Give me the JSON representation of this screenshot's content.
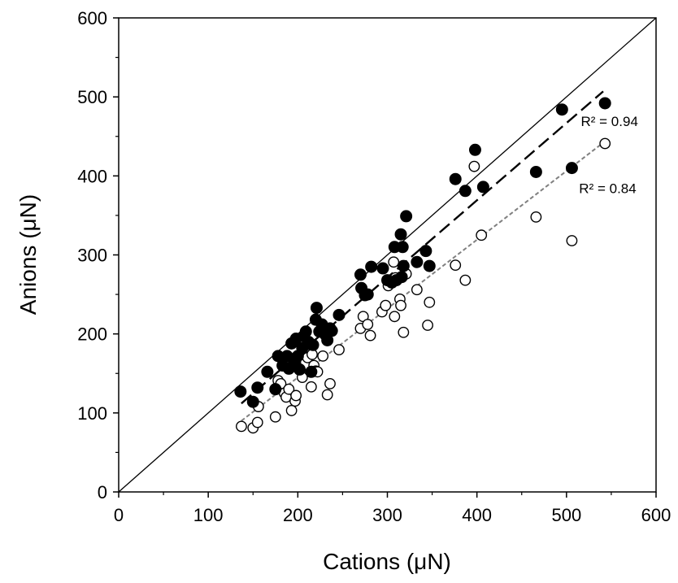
{
  "chart_data": {
    "type": "scatter",
    "title": "",
    "xlabel": "Cations (μN)",
    "ylabel": "Anions (μN)",
    "xlim": [
      0,
      600
    ],
    "ylim": [
      0,
      600
    ],
    "xticks": [
      "0",
      "100",
      "200",
      "300",
      "400",
      "500",
      "600"
    ],
    "yticks": [
      "0",
      "100",
      "200",
      "300",
      "400",
      "500",
      "600"
    ],
    "grid": false,
    "legend": "none",
    "series": [
      {
        "marker": "filled-circle",
        "color": "#000000",
        "points": [
          [
            136,
            127
          ],
          [
            150,
            114
          ],
          [
            155,
            132
          ],
          [
            166,
            152
          ],
          [
            175,
            130
          ],
          [
            178,
            172
          ],
          [
            183,
            160
          ],
          [
            188,
            172
          ],
          [
            190,
            156
          ],
          [
            193,
            188
          ],
          [
            197,
            165
          ],
          [
            198,
            194
          ],
          [
            200,
            172
          ],
          [
            202,
            155
          ],
          [
            205,
            182
          ],
          [
            207,
            197
          ],
          [
            209,
            203
          ],
          [
            212,
            190
          ],
          [
            215,
            152
          ],
          [
            217,
            186
          ],
          [
            220,
            218
          ],
          [
            221,
            233
          ],
          [
            224,
            203
          ],
          [
            227,
            212
          ],
          [
            230,
            200
          ],
          [
            233,
            192
          ],
          [
            236,
            207
          ],
          [
            238,
            204
          ],
          [
            246,
            224
          ],
          [
            270,
            275
          ],
          [
            271,
            258
          ],
          [
            275,
            249
          ],
          [
            278,
            250
          ],
          [
            282,
            285
          ],
          [
            295,
            283
          ],
          [
            300,
            268
          ],
          [
            305,
            265
          ],
          [
            308,
            310
          ],
          [
            310,
            268
          ],
          [
            315,
            326
          ],
          [
            316,
            272
          ],
          [
            317,
            310
          ],
          [
            318,
            286
          ],
          [
            321,
            349
          ],
          [
            333,
            291
          ],
          [
            343,
            305
          ],
          [
            347,
            286
          ],
          [
            376,
            396
          ],
          [
            387,
            381
          ],
          [
            398,
            433
          ],
          [
            407,
            386
          ],
          [
            466,
            405
          ],
          [
            495,
            484
          ],
          [
            506,
            410
          ],
          [
            543,
            492
          ]
        ]
      },
      {
        "marker": "open-circle",
        "color": "#000000",
        "points": [
          [
            137,
            83
          ],
          [
            150,
            81
          ],
          [
            155,
            88
          ],
          [
            156,
            108
          ],
          [
            175,
            95
          ],
          [
            178,
            141
          ],
          [
            181,
            137
          ],
          [
            185,
            125
          ],
          [
            187,
            120
          ],
          [
            190,
            130
          ],
          [
            193,
            103
          ],
          [
            197,
            115
          ],
          [
            198,
            122
          ],
          [
            200,
            157
          ],
          [
            205,
            145
          ],
          [
            207,
            178
          ],
          [
            211,
            170
          ],
          [
            215,
            133
          ],
          [
            216,
            174
          ],
          [
            218,
            160
          ],
          [
            220,
            153
          ],
          [
            222,
            152
          ],
          [
            228,
            172
          ],
          [
            233,
            123
          ],
          [
            236,
            137
          ],
          [
            246,
            180
          ],
          [
            270,
            207
          ],
          [
            273,
            222
          ],
          [
            278,
            212
          ],
          [
            281,
            198
          ],
          [
            294,
            228
          ],
          [
            298,
            236
          ],
          [
            301,
            261
          ],
          [
            305,
            265
          ],
          [
            307,
            291
          ],
          [
            308,
            222
          ],
          [
            309,
            271
          ],
          [
            314,
            244
          ],
          [
            315,
            236
          ],
          [
            318,
            202
          ],
          [
            321,
            276
          ],
          [
            333,
            256
          ],
          [
            345,
            211
          ],
          [
            347,
            240
          ],
          [
            376,
            287
          ],
          [
            387,
            268
          ],
          [
            397,
            412
          ],
          [
            405,
            325
          ],
          [
            466,
            348
          ],
          [
            506,
            318
          ],
          [
            543,
            441
          ]
        ]
      }
    ],
    "lines": [
      {
        "kind": "1:1 line",
        "style": "solid",
        "color": "#000000",
        "x": [
          0,
          600
        ],
        "y": [
          0,
          600
        ]
      },
      {
        "kind": "filled fit",
        "style": "long-dash",
        "color": "#000000",
        "x": [
          137,
          541
        ],
        "y": [
          112,
          507
        ]
      },
      {
        "kind": "open fit",
        "style": "short-dash",
        "color": "#808080",
        "x": [
          137,
          541
        ],
        "y": [
          90,
          442
        ]
      }
    ],
    "annotations": [
      {
        "text": "R² = 0.94",
        "x": 548,
        "y": 463
      },
      {
        "text": "R² = 0.84",
        "x": 546,
        "y": 378
      }
    ]
  }
}
